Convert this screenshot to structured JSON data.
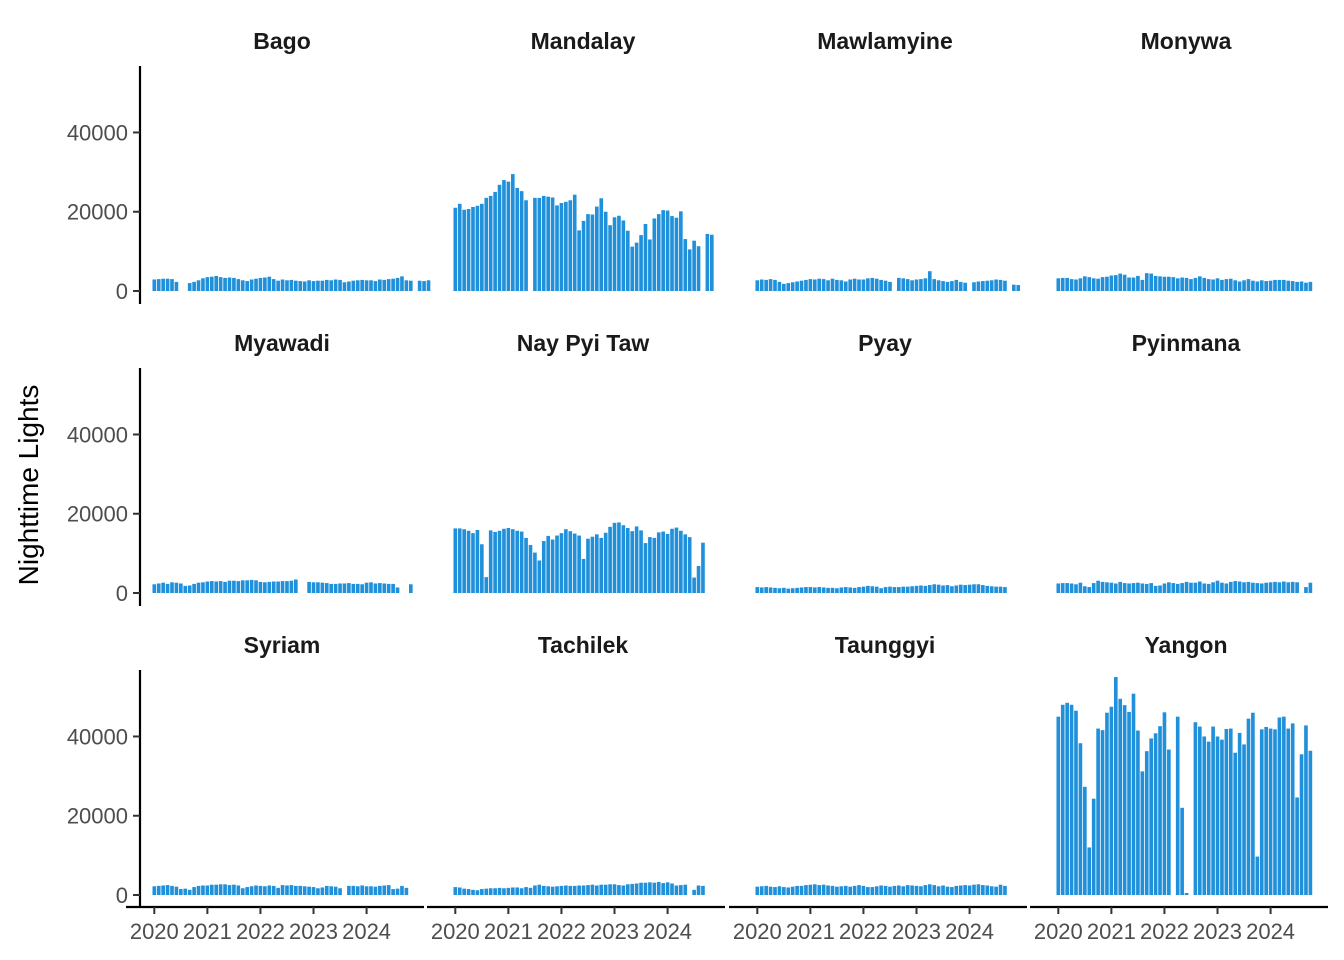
{
  "chart_data": {
    "type": "bar",
    "facet_layout": "4x3 grid",
    "xlabel": "",
    "ylabel": "Nighttime Lights",
    "ylim": [
      0,
      57000
    ],
    "y_ticks": [
      0,
      20000,
      40000
    ],
    "x_ticks": [
      "2020",
      "2021",
      "2022",
      "2023",
      "2024"
    ],
    "x_range": [
      2019.9,
      2024.95
    ],
    "bar_color": "#1f90d9",
    "grid": false,
    "panels": [
      {
        "title": "Bago",
        "x_start": 2020.0,
        "values": [
          2900,
          3000,
          3100,
          3100,
          3000,
          2300,
          0,
          0,
          2000,
          2300,
          2700,
          3200,
          3500,
          3600,
          3800,
          3500,
          3300,
          3400,
          3300,
          3000,
          2700,
          2500,
          2900,
          3100,
          3300,
          3400,
          3600,
          3000,
          2600,
          2900,
          2700,
          2800,
          2600,
          2500,
          2400,
          2700,
          2500,
          2600,
          2600,
          2800,
          2700,
          2900,
          2800,
          2200,
          2400,
          2600,
          2700,
          2800,
          2700,
          2700,
          2500,
          2900,
          2800,
          3000,
          3100,
          3300,
          3700,
          2700,
          2600,
          0,
          2600,
          2500,
          2700
        ]
      },
      {
        "title": "Mandalay",
        "x_start": 2020.0,
        "values": [
          21000,
          22000,
          20500,
          20700,
          21200,
          21500,
          22000,
          23500,
          24000,
          25000,
          26800,
          28000,
          27600,
          29500,
          26000,
          25200,
          22900,
          0,
          23500,
          23500,
          24000,
          23800,
          23600,
          21600,
          22200,
          22500,
          22900,
          24300,
          15300,
          17700,
          19400,
          19300,
          21300,
          23400,
          20000,
          16600,
          18600,
          19000,
          17800,
          15200,
          11200,
          12200,
          14100,
          16900,
          13000,
          18300,
          19400,
          20400,
          20300,
          18900,
          18500,
          20100,
          13100,
          10500,
          12700,
          11300,
          0,
          14400,
          14200
        ]
      },
      {
        "title": "Mawlamyine",
        "x_start": 2020.0,
        "values": [
          2700,
          2900,
          2800,
          3000,
          2800,
          2300,
          1800,
          2000,
          2200,
          2400,
          2600,
          2800,
          3000,
          2900,
          3100,
          3000,
          2700,
          3100,
          2800,
          2700,
          2400,
          2900,
          3100,
          2900,
          2900,
          3200,
          3300,
          3100,
          2800,
          2600,
          2300,
          0,
          3300,
          3200,
          3000,
          2700,
          2900,
          3000,
          3200,
          5000,
          3000,
          2700,
          2500,
          2300,
          2500,
          2800,
          2300,
          2100,
          0,
          2200,
          2400,
          2500,
          2600,
          2700,
          2900,
          2800,
          2600,
          0,
          1600,
          1500
        ]
      },
      {
        "title": "Monywa",
        "x_start": 2020.0,
        "values": [
          3200,
          3300,
          3300,
          3000,
          2900,
          3200,
          3700,
          3500,
          3200,
          3100,
          3500,
          3600,
          3900,
          4000,
          4400,
          4100,
          3400,
          3400,
          3800,
          2800,
          4500,
          4400,
          3800,
          3700,
          3600,
          3600,
          3500,
          3200,
          3400,
          3300,
          3000,
          3300,
          3700,
          3300,
          3000,
          2900,
          3200,
          2800,
          3000,
          3100,
          2700,
          2400,
          2700,
          3000,
          2600,
          2400,
          2700,
          2500,
          2600,
          2800,
          2800,
          2800,
          2600,
          2500,
          2300,
          2400,
          2100,
          2300
        ]
      },
      {
        "title": "Myawadi",
        "x_start": 2020.0,
        "values": [
          2200,
          2400,
          2600,
          2300,
          2700,
          2600,
          2400,
          1800,
          1900,
          2300,
          2600,
          2700,
          2900,
          3000,
          2900,
          3000,
          2800,
          3100,
          3100,
          3000,
          3200,
          3200,
          3300,
          3200,
          2800,
          2700,
          2800,
          2900,
          2900,
          3000,
          3000,
          3100,
          3400,
          0,
          0,
          2800,
          2700,
          2700,
          2600,
          2500,
          2300,
          2300,
          2400,
          2400,
          2500,
          2300,
          2300,
          2200,
          2600,
          2700,
          2400,
          2500,
          2400,
          2300,
          2300,
          1400,
          0,
          0,
          2200
        ]
      },
      {
        "title": "Nay Pyi Taw",
        "x_start": 2020.0,
        "values": [
          16300,
          16300,
          16100,
          15700,
          15100,
          15900,
          12300,
          4000,
          15800,
          15400,
          15700,
          16200,
          16400,
          16100,
          15700,
          15500,
          13900,
          12100,
          10200,
          8200,
          13100,
          14400,
          13500,
          14500,
          15100,
          16100,
          15600,
          15000,
          14500,
          8600,
          13700,
          14200,
          14800,
          13900,
          15200,
          16700,
          17700,
          17800,
          17100,
          16400,
          15600,
          16800,
          15800,
          12600,
          14100,
          13900,
          15300,
          15500,
          14900,
          16200,
          16500,
          15700,
          14800,
          14100,
          3900,
          6800,
          12700
        ]
      },
      {
        "title": "Pyay",
        "x_start": 2020.0,
        "values": [
          1500,
          1400,
          1500,
          1400,
          1300,
          1200,
          1300,
          1100,
          1200,
          1300,
          1400,
          1500,
          1500,
          1400,
          1500,
          1400,
          1300,
          1300,
          1200,
          1400,
          1500,
          1400,
          1300,
          1500,
          1600,
          1800,
          1700,
          1600,
          1200,
          1500,
          1600,
          1500,
          1500,
          1600,
          1600,
          1700,
          1800,
          1900,
          1800,
          2000,
          2200,
          2100,
          1900,
          2000,
          1700,
          1900,
          2100,
          2000,
          2100,
          2200,
          2200,
          2000,
          1800,
          1700,
          1600,
          1600,
          1500
        ]
      },
      {
        "title": "Pyinmana",
        "x_start": 2020.0,
        "values": [
          2400,
          2500,
          2500,
          2400,
          2200,
          2600,
          1700,
          1500,
          2500,
          3100,
          2800,
          2700,
          2600,
          2400,
          2800,
          2500,
          2400,
          2500,
          2600,
          2400,
          2300,
          2500,
          1800,
          1900,
          2400,
          2700,
          2500,
          2300,
          2500,
          2800,
          2600,
          2600,
          2900,
          2400,
          2300,
          2700,
          3100,
          2600,
          2400,
          2800,
          3000,
          2900,
          2700,
          2800,
          2600,
          2500,
          2400,
          2600,
          2700,
          2800,
          2700,
          2900,
          2700,
          2800,
          2700,
          0,
          1500,
          2600
        ]
      },
      {
        "title": "Syriam",
        "x_start": 2020.0,
        "values": [
          2200,
          2300,
          2400,
          2500,
          2300,
          2100,
          1500,
          1600,
          1300,
          2000,
          2300,
          2400,
          2400,
          2600,
          2600,
          2700,
          2700,
          2500,
          2600,
          2400,
          1700,
          2000,
          2200,
          2400,
          2300,
          2200,
          2400,
          2300,
          1800,
          2500,
          2400,
          2500,
          2300,
          2300,
          2200,
          2100,
          2000,
          1700,
          1900,
          2300,
          2200,
          2100,
          1700,
          0,
          2300,
          2300,
          2200,
          2400,
          2200,
          2200,
          2100,
          2300,
          2400,
          2500,
          1500,
          1600,
          2300,
          1800
        ]
      },
      {
        "title": "Tachilek",
        "x_start": 2020.0,
        "values": [
          2000,
          1900,
          1600,
          1500,
          1300,
          1200,
          1500,
          1600,
          1700,
          1700,
          1800,
          1700,
          1800,
          1900,
          1900,
          1700,
          2000,
          1800,
          2400,
          2600,
          2300,
          2200,
          2100,
          2200,
          2300,
          2400,
          2300,
          2300,
          2400,
          2400,
          2500,
          2600,
          2400,
          2600,
          2600,
          2700,
          2700,
          2500,
          2400,
          2700,
          2800,
          2900,
          3100,
          3100,
          3200,
          3100,
          3300,
          3000,
          3200,
          2900,
          2400,
          2500,
          2600,
          0,
          1300,
          2400,
          2300
        ]
      },
      {
        "title": "Taunggyi",
        "x_start": 2020.0,
        "values": [
          2100,
          2200,
          2300,
          2100,
          2000,
          2200,
          2000,
          1900,
          2100,
          2300,
          2300,
          2500,
          2600,
          2700,
          2500,
          2600,
          2400,
          2300,
          2100,
          2200,
          2300,
          2100,
          2300,
          2500,
          2300,
          2000,
          2000,
          2200,
          2400,
          2300,
          2100,
          2300,
          2400,
          2200,
          2500,
          2400,
          2300,
          2200,
          2500,
          2700,
          2500,
          2200,
          2400,
          2100,
          2000,
          2300,
          2400,
          2500,
          2400,
          2600,
          2700,
          2500,
          2400,
          2200,
          2100,
          2600,
          2300
        ]
      },
      {
        "title": "Yangon",
        "x_start": 2020.0,
        "values": [
          45000,
          48000,
          48500,
          48000,
          46500,
          38300,
          27300,
          12000,
          24300,
          42000,
          41600,
          46000,
          47500,
          55000,
          49500,
          47900,
          46200,
          50800,
          41500,
          31200,
          36300,
          39500,
          40800,
          42600,
          46100,
          36700,
          0,
          45000,
          22000,
          500,
          0,
          43600,
          42500,
          40000,
          38700,
          42500,
          40000,
          39200,
          41900,
          42000,
          35900,
          40900,
          38000,
          44500,
          46000,
          9700,
          41800,
          42400,
          42000,
          41800,
          44800,
          45000,
          42000,
          43300,
          24600,
          35500,
          42800,
          36400
        ]
      }
    ]
  }
}
